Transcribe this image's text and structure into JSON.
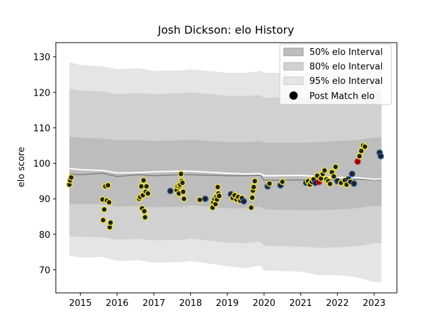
{
  "chart_data": {
    "type": "scatter",
    "title": "Josh Dickson: elo History",
    "xlabel": "",
    "ylabel": "elo score",
    "xlim": [
      2014.33,
      2023.62
    ],
    "ylim": [
      63.5,
      134
    ],
    "xticks": [
      2015,
      2016,
      2017,
      2018,
      2019,
      2020,
      2021,
      2022,
      2023
    ],
    "yticks": [
      70,
      80,
      90,
      100,
      110,
      120,
      130
    ],
    "legend": {
      "position": "top-right",
      "entries": [
        "50% elo Interval",
        "80% elo Interval",
        "95% elo Interval",
        "Post Match elo"
      ]
    },
    "colors": {
      "band95": "#e5e5e5",
      "band80": "#d1d1d1",
      "band50": "#bdbdbd",
      "mean": "#ffffff",
      "median": "#808080",
      "marker_fill": "#222222",
      "edge_win": "#f2e63d",
      "edge_loss": "#2a5fa5",
      "edge_red": "#d4202a"
    },
    "bands": {
      "x": [
        2014.7,
        2015.0,
        2015.6,
        2016.0,
        2016.6,
        2017.0,
        2017.8,
        2018.0,
        2019.0,
        2019.5,
        2019.9,
        2020.0,
        2021.0,
        2021.5,
        2022.0,
        2022.5,
        2023.0,
        2023.2
      ],
      "p95_hi": [
        128.5,
        127.7,
        127.3,
        126.5,
        126.8,
        126.0,
        126.2,
        126.5,
        125.5,
        125.5,
        126.0,
        125.5,
        125.5,
        125.8,
        126.0,
        126.2,
        127.2,
        127.2
      ],
      "p90_hi": [
        121.0,
        120.5,
        120.2,
        119.5,
        119.8,
        119.5,
        119.8,
        120.0,
        119.0,
        119.0,
        119.2,
        118.5,
        118.5,
        118.8,
        119.0,
        119.3,
        120.5,
        120.5
      ],
      "p75_hi": [
        107.5,
        107.2,
        107.0,
        106.5,
        106.6,
        106.3,
        106.5,
        106.7,
        106.0,
        106.0,
        106.2,
        105.8,
        105.8,
        106.0,
        106.3,
        106.5,
        107.3,
        107.3
      ],
      "p25_lo": [
        88.5,
        88.5,
        88.5,
        87.8,
        88.0,
        87.6,
        87.8,
        88.2,
        87.3,
        87.3,
        87.8,
        87.0,
        86.8,
        86.8,
        87.0,
        87.3,
        88.0,
        88.0
      ],
      "p10_lo": [
        79.5,
        79.3,
        79.2,
        78.5,
        78.7,
        78.3,
        78.5,
        78.8,
        77.7,
        77.5,
        78.0,
        76.8,
        76.5,
        76.2,
        76.3,
        76.6,
        77.5,
        77.5
      ],
      "p05_lo": [
        74.0,
        73.5,
        73.6,
        72.5,
        72.7,
        72.0,
        72.2,
        72.5,
        71.0,
        70.5,
        71.2,
        69.8,
        69.5,
        68.5,
        68.5,
        68.0,
        66.5,
        66.5
      ],
      "mean": [
        98.5,
        98.2,
        98.0,
        97.3,
        97.4,
        97.6,
        97.8,
        97.8,
        97.2,
        97.0,
        97.1,
        96.5,
        96.6,
        96.3,
        96.0,
        96.0,
        95.5,
        95.6
      ],
      "median": [
        97.0,
        96.8,
        97.2,
        96.3,
        96.8,
        96.5,
        96.8,
        96.8,
        96.5,
        96.5,
        96.6,
        95.2,
        95.3,
        95.3,
        95.3,
        95.5,
        95.3,
        95.3
      ]
    },
    "points": [
      {
        "x": 2014.7,
        "y": 94.0,
        "e": "w"
      },
      {
        "x": 2014.72,
        "y": 95.2,
        "e": "w"
      },
      {
        "x": 2014.75,
        "y": 96.0,
        "e": "w"
      },
      {
        "x": 2015.6,
        "y": 89.8,
        "e": "w"
      },
      {
        "x": 2015.62,
        "y": 84.0,
        "e": "w"
      },
      {
        "x": 2015.65,
        "y": 87.0,
        "e": "w"
      },
      {
        "x": 2015.68,
        "y": 93.5,
        "e": "w"
      },
      {
        "x": 2015.72,
        "y": 89.5,
        "e": "w"
      },
      {
        "x": 2015.75,
        "y": 93.8,
        "e": "w"
      },
      {
        "x": 2015.78,
        "y": 89.0,
        "e": "w"
      },
      {
        "x": 2015.8,
        "y": 82.0,
        "e": "w"
      },
      {
        "x": 2015.82,
        "y": 83.3,
        "e": "w"
      },
      {
        "x": 2016.6,
        "y": 90.0,
        "e": "w"
      },
      {
        "x": 2016.63,
        "y": 90.5,
        "e": "w"
      },
      {
        "x": 2016.66,
        "y": 93.5,
        "e": "w"
      },
      {
        "x": 2016.68,
        "y": 87.3,
        "e": "w"
      },
      {
        "x": 2016.7,
        "y": 91.0,
        "e": "w"
      },
      {
        "x": 2016.72,
        "y": 95.2,
        "e": "w"
      },
      {
        "x": 2016.74,
        "y": 86.5,
        "e": "w"
      },
      {
        "x": 2016.76,
        "y": 84.8,
        "e": "w"
      },
      {
        "x": 2016.78,
        "y": 92.0,
        "e": "w"
      },
      {
        "x": 2016.8,
        "y": 93.5,
        "e": "w"
      },
      {
        "x": 2016.84,
        "y": 91.5,
        "e": "w"
      },
      {
        "x": 2017.45,
        "y": 92.2,
        "e": "b"
      },
      {
        "x": 2017.62,
        "y": 92.5,
        "e": "w"
      },
      {
        "x": 2017.65,
        "y": 93.5,
        "e": "w"
      },
      {
        "x": 2017.68,
        "y": 91.5,
        "e": "w"
      },
      {
        "x": 2017.7,
        "y": 93.5,
        "e": "w"
      },
      {
        "x": 2017.72,
        "y": 94.0,
        "e": "w"
      },
      {
        "x": 2017.74,
        "y": 97.0,
        "e": "w"
      },
      {
        "x": 2017.76,
        "y": 95.0,
        "e": "w"
      },
      {
        "x": 2017.78,
        "y": 94.5,
        "e": "w"
      },
      {
        "x": 2017.8,
        "y": 92.0,
        "e": "w"
      },
      {
        "x": 2017.82,
        "y": 90.0,
        "e": "w"
      },
      {
        "x": 2018.25,
        "y": 89.7,
        "e": "w"
      },
      {
        "x": 2018.4,
        "y": 90.0,
        "e": "b"
      },
      {
        "x": 2018.6,
        "y": 87.5,
        "e": "w"
      },
      {
        "x": 2018.62,
        "y": 89.0,
        "e": "w"
      },
      {
        "x": 2018.65,
        "y": 90.0,
        "e": "w"
      },
      {
        "x": 2018.68,
        "y": 88.5,
        "e": "w"
      },
      {
        "x": 2018.7,
        "y": 90.5,
        "e": "w"
      },
      {
        "x": 2018.72,
        "y": 89.8,
        "e": "w"
      },
      {
        "x": 2018.74,
        "y": 93.3,
        "e": "w"
      },
      {
        "x": 2018.76,
        "y": 91.5,
        "e": "w"
      },
      {
        "x": 2018.78,
        "y": 90.8,
        "e": "w"
      },
      {
        "x": 2019.1,
        "y": 91.3,
        "e": "b"
      },
      {
        "x": 2019.15,
        "y": 90.2,
        "e": "w"
      },
      {
        "x": 2019.2,
        "y": 91.0,
        "e": "w"
      },
      {
        "x": 2019.25,
        "y": 89.8,
        "e": "w"
      },
      {
        "x": 2019.3,
        "y": 90.5,
        "e": "w"
      },
      {
        "x": 2019.35,
        "y": 89.5,
        "e": "w"
      },
      {
        "x": 2019.4,
        "y": 90.2,
        "e": "w"
      },
      {
        "x": 2019.45,
        "y": 89.3,
        "e": "b"
      },
      {
        "x": 2019.65,
        "y": 87.5,
        "e": "w"
      },
      {
        "x": 2019.68,
        "y": 90.3,
        "e": "w"
      },
      {
        "x": 2019.7,
        "y": 92.3,
        "e": "w"
      },
      {
        "x": 2019.72,
        "y": 93.3,
        "e": "w"
      },
      {
        "x": 2019.75,
        "y": 95.0,
        "e": "w"
      },
      {
        "x": 2020.1,
        "y": 93.5,
        "e": "b"
      },
      {
        "x": 2020.15,
        "y": 94.3,
        "e": "w"
      },
      {
        "x": 2020.45,
        "y": 93.8,
        "e": "b"
      },
      {
        "x": 2020.5,
        "y": 94.8,
        "e": "w"
      },
      {
        "x": 2021.15,
        "y": 94.5,
        "e": "b"
      },
      {
        "x": 2021.2,
        "y": 95.0,
        "e": "w"
      },
      {
        "x": 2021.25,
        "y": 94.0,
        "e": "w"
      },
      {
        "x": 2021.3,
        "y": 94.8,
        "e": "w"
      },
      {
        "x": 2021.35,
        "y": 95.5,
        "e": "w"
      },
      {
        "x": 2021.4,
        "y": 94.5,
        "e": "b"
      },
      {
        "x": 2021.45,
        "y": 96.5,
        "e": "w"
      },
      {
        "x": 2021.5,
        "y": 94.8,
        "e": "r"
      },
      {
        "x": 2021.55,
        "y": 95.7,
        "e": "w"
      },
      {
        "x": 2021.6,
        "y": 97.0,
        "e": "w"
      },
      {
        "x": 2021.65,
        "y": 98.0,
        "e": "w"
      },
      {
        "x": 2021.7,
        "y": 95.5,
        "e": "w"
      },
      {
        "x": 2021.75,
        "y": 95.0,
        "e": "w"
      },
      {
        "x": 2021.8,
        "y": 94.2,
        "e": "w"
      },
      {
        "x": 2021.85,
        "y": 97.5,
        "e": "w"
      },
      {
        "x": 2021.9,
        "y": 96.3,
        "e": "w"
      },
      {
        "x": 2021.95,
        "y": 99.0,
        "e": "w"
      },
      {
        "x": 2022.0,
        "y": 95.0,
        "e": "b"
      },
      {
        "x": 2022.1,
        "y": 94.5,
        "e": "w"
      },
      {
        "x": 2022.2,
        "y": 95.2,
        "e": "w"
      },
      {
        "x": 2022.25,
        "y": 94.0,
        "e": "w"
      },
      {
        "x": 2022.3,
        "y": 95.5,
        "e": "b"
      },
      {
        "x": 2022.35,
        "y": 94.8,
        "e": "w"
      },
      {
        "x": 2022.4,
        "y": 97.0,
        "e": "b"
      },
      {
        "x": 2022.45,
        "y": 94.3,
        "e": "b"
      },
      {
        "x": 2022.55,
        "y": 100.5,
        "e": "r"
      },
      {
        "x": 2022.6,
        "y": 102.0,
        "e": "w"
      },
      {
        "x": 2022.65,
        "y": 103.5,
        "e": "w"
      },
      {
        "x": 2022.7,
        "y": 105.0,
        "e": "w"
      },
      {
        "x": 2022.75,
        "y": 104.7,
        "e": "w"
      },
      {
        "x": 2023.15,
        "y": 103.0,
        "e": "b"
      },
      {
        "x": 2023.18,
        "y": 102.0,
        "e": "b"
      }
    ]
  }
}
